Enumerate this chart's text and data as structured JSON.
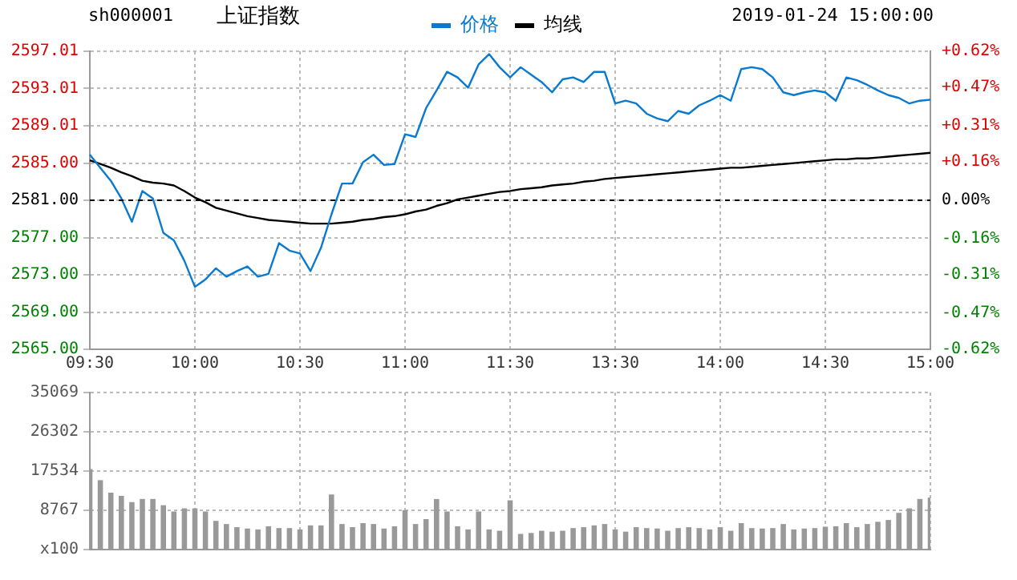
{
  "chart_data": [
    {
      "type": "line",
      "title": "上证指数",
      "annotations": [
        "sh000001",
        "2019-01-24 15:00:00"
      ],
      "categories": [
        "09:30",
        null,
        null,
        null,
        null,
        null,
        null,
        null,
        null,
        null,
        "10:00",
        null,
        null,
        null,
        null,
        null,
        null,
        null,
        null,
        null,
        "10:30",
        null,
        null,
        null,
        null,
        null,
        null,
        null,
        null,
        null,
        "11:00",
        null,
        null,
        null,
        null,
        null,
        null,
        null,
        null,
        null,
        "11:30",
        null,
        null,
        null,
        null,
        null,
        null,
        null,
        null,
        null,
        "13:30",
        null,
        null,
        null,
        null,
        null,
        null,
        null,
        null,
        null,
        "14:00",
        null,
        null,
        null,
        null,
        null,
        null,
        null,
        null,
        null,
        "14:30",
        null,
        null,
        null,
        null,
        null,
        null,
        null,
        null,
        null,
        "15:00"
      ],
      "series": [
        {
          "name": "价格",
          "color": "#0a7ad0",
          "values": [
            2585.9,
            2584.5,
            2583.1,
            2581.2,
            2578.7,
            2582.0,
            2581.2,
            2577.5,
            2576.7,
            2574.5,
            2571.7,
            2572.5,
            2573.7,
            2572.8,
            2573.4,
            2573.9,
            2572.8,
            2573.1,
            2576.4,
            2575.6,
            2575.3,
            2573.4,
            2575.9,
            2579.5,
            2582.8,
            2582.8,
            2585.1,
            2585.9,
            2584.8,
            2584.9,
            2588.1,
            2587.8,
            2590.9,
            2592.8,
            2594.8,
            2594.2,
            2593.1,
            2595.6,
            2596.7,
            2595.3,
            2594.2,
            2595.3,
            2594.5,
            2593.7,
            2592.6,
            2594.0,
            2594.2,
            2593.7,
            2594.8,
            2594.8,
            2591.4,
            2591.7,
            2591.4,
            2590.3,
            2589.8,
            2589.5,
            2590.6,
            2590.3,
            2591.2,
            2591.7,
            2592.3,
            2591.7,
            2595.1,
            2595.3,
            2595.1,
            2594.2,
            2592.6,
            2592.3,
            2592.6,
            2592.8,
            2592.6,
            2591.7,
            2594.2,
            2593.9,
            2593.4,
            2592.8,
            2592.3,
            2592.0,
            2591.4,
            2591.7,
            2591.8
          ]
        },
        {
          "name": "均线",
          "color": "#000000",
          "values": [
            2585.3,
            2584.9,
            2584.5,
            2584.0,
            2583.6,
            2583.1,
            2582.9,
            2582.8,
            2582.6,
            2582.0,
            2581.3,
            2580.8,
            2580.2,
            2579.9,
            2579.6,
            2579.3,
            2579.1,
            2578.9,
            2578.8,
            2578.7,
            2578.6,
            2578.5,
            2578.5,
            2578.5,
            2578.6,
            2578.7,
            2578.9,
            2579.0,
            2579.2,
            2579.3,
            2579.5,
            2579.8,
            2580.0,
            2580.4,
            2580.7,
            2581.1,
            2581.3,
            2581.5,
            2581.7,
            2581.9,
            2582.0,
            2582.2,
            2582.3,
            2582.4,
            2582.6,
            2582.7,
            2582.8,
            2583.0,
            2583.1,
            2583.3,
            2583.4,
            2583.5,
            2583.6,
            2583.7,
            2583.8,
            2583.9,
            2584.0,
            2584.1,
            2584.2,
            2584.3,
            2584.4,
            2584.5,
            2584.5,
            2584.6,
            2584.7,
            2584.8,
            2584.9,
            2585.0,
            2585.1,
            2585.2,
            2585.3,
            2585.4,
            2585.4,
            2585.5,
            2585.5,
            2585.6,
            2585.7,
            2585.8,
            2585.9,
            2586.0,
            2586.1
          ]
        }
      ],
      "ylim": [
        2565,
        2597.01
      ],
      "yticks": [
        {
          "value": 2565,
          "label": "2565.00"
        },
        {
          "value": 2569,
          "label": "2569.00"
        },
        {
          "value": 2573,
          "label": "2573.00"
        },
        {
          "value": 2577,
          "label": "2577.00"
        },
        {
          "value": 2581,
          "label": "2581.00"
        },
        {
          "value": 2585,
          "label": "2585.00"
        },
        2589.01,
        2593.01,
        2597.01
      ],
      "y2lim": [
        -0.62,
        0.62
      ],
      "y2ticks": [
        {
          "value": -0.62,
          "label": "-0.62%"
        },
        {
          "value": -0.47,
          "label": "-0.47%"
        },
        {
          "value": -0.31,
          "label": "-0.31%"
        },
        {
          "value": -0.16,
          "label": "-0.16%"
        },
        {
          "value": 0,
          "label": "0.00%"
        },
        {
          "value": 0.16,
          "label": "+0.16%"
        },
        {
          "value": 0.31,
          "label": "+0.31%"
        },
        {
          "value": 0.47,
          "label": "+0.47%"
        },
        {
          "value": 0.62,
          "label": "+0.62%"
        }
      ],
      "ref_lines": [
        {
          "axis": "y",
          "value": 2581,
          "color": "#000000",
          "line_style": "dashed"
        }
      ],
      "grid": true,
      "legend": "top"
    },
    {
      "type": "bar",
      "color": "#999999",
      "categories": [
        null,
        null,
        null,
        null,
        null,
        null,
        null,
        null,
        null,
        null,
        null,
        null,
        null,
        null,
        null,
        null,
        null,
        null,
        null,
        null,
        null,
        null,
        null,
        null,
        null,
        null,
        null,
        null,
        null,
        null,
        null,
        null,
        null,
        null,
        null,
        null,
        null,
        null,
        null,
        null,
        null,
        null,
        null,
        null,
        null,
        null,
        null,
        null,
        null,
        null,
        null,
        null,
        null,
        null,
        null,
        null,
        null,
        null,
        null,
        null,
        null,
        null,
        null,
        null,
        null,
        null,
        null,
        null,
        null,
        null,
        null,
        null,
        null,
        null,
        null,
        null,
        null,
        null,
        null,
        null,
        null
      ],
      "values": [
        18000,
        15500,
        12700,
        12000,
        10600,
        11300,
        11300,
        9900,
        8500,
        9200,
        9200,
        8500,
        6400,
        5700,
        5000,
        4700,
        4500,
        5200,
        4800,
        4800,
        4500,
        5400,
        5400,
        12300,
        5700,
        5000,
        5900,
        5700,
        4700,
        5200,
        8800,
        5700,
        6800,
        11300,
        8500,
        5200,
        4500,
        8500,
        4500,
        4200,
        11000,
        3500,
        3700,
        4200,
        4000,
        4200,
        4800,
        5000,
        5400,
        5700,
        4500,
        4000,
        5000,
        4800,
        4700,
        4200,
        4800,
        5000,
        4800,
        4500,
        5000,
        4200,
        5900,
        4800,
        4700,
        4800,
        5700,
        4500,
        4700,
        4800,
        5100,
        5200,
        5900,
        5000,
        5700,
        6200,
        6600,
        8200,
        9200,
        11300,
        11600
      ],
      "ylim": [
        0,
        35069
      ],
      "yticks": [
        {
          "value": 0,
          "label": "x100"
        },
        8767,
        17534,
        26302,
        35069
      ],
      "tick_labels": "y",
      "grid": true
    }
  ]
}
